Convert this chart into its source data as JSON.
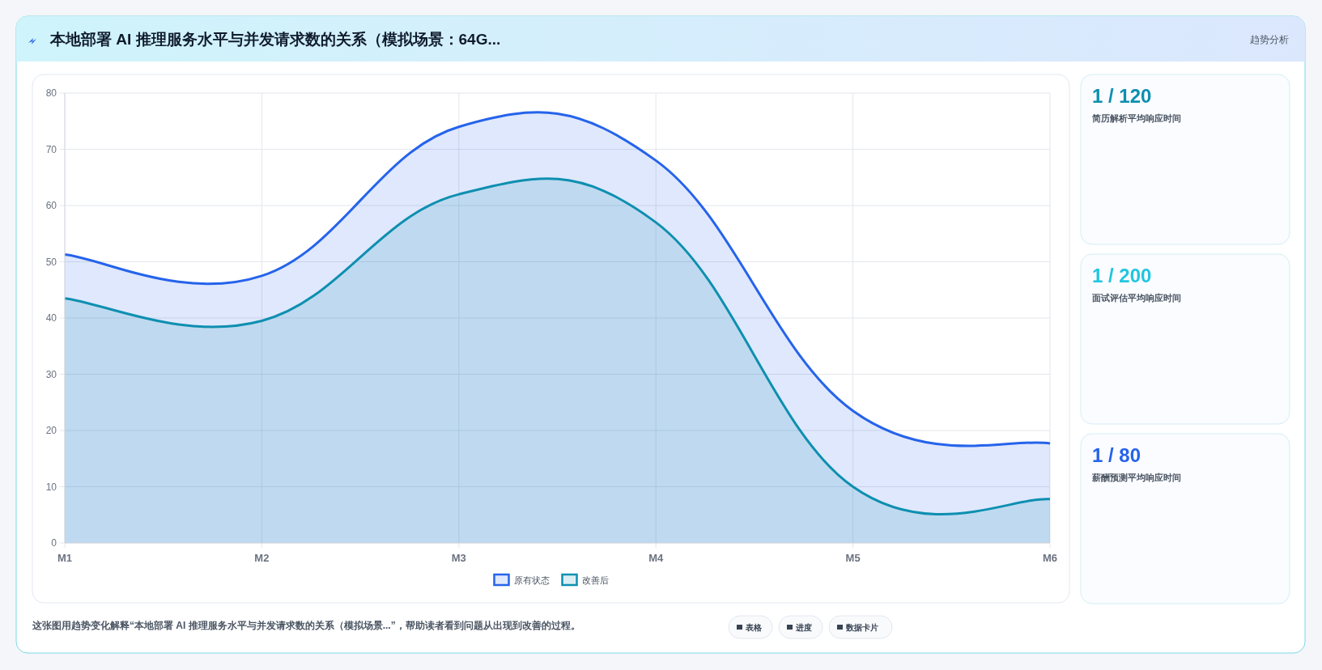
{
  "chart_data": [
    {
      "type": "area",
      "title": "本地部署 AI 推理服务水平与并发请求数的关系（模拟场景：64G...",
      "categories": [
        "M1",
        "M2",
        "M3",
        "M4",
        "M5",
        "M6"
      ],
      "series": [
        {
          "name": "原有状态",
          "color": "#2563eb",
          "values": [
            51.3,
            47.5,
            74,
            68,
            23.5,
            17.7
          ]
        },
        {
          "name": "改善后",
          "color": "#0e8fb0",
          "values": [
            43.5,
            39.5,
            62,
            57,
            10,
            7.8
          ]
        }
      ],
      "ylim": [
        0,
        80
      ],
      "yticks": [
        0,
        10,
        20,
        30,
        40,
        50,
        60,
        70,
        80
      ],
      "grid": true,
      "legend": "bottom",
      "annotations": [
        "这张图用趋势变化解释“本地部署 AI 推理服务水平与并发请求数的关系（模拟场景...”，帮助读者看到问题从出现到改善的过程。",
        "表格",
        "进度",
        "数据卡片"
      ]
    },
    {
      "type": "other",
      "annotations": [
        "趋势分析",
        "1 / 120",
        "简历解析平均响应时间",
        "1 / 200",
        "面试评估平均响应时间",
        "1 / 80",
        "薪酬预测平均响应时间"
      ]
    }
  ]
}
